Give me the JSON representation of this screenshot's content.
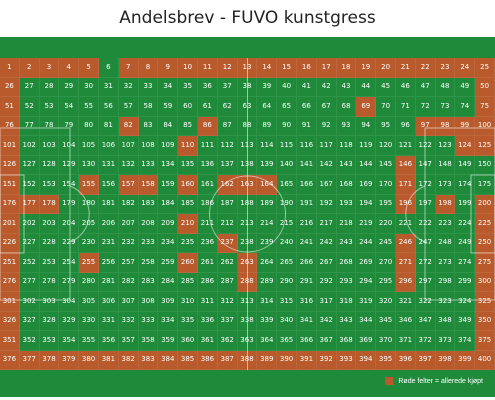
{
  "title": "Andelsbrev - FUVO kunstgress",
  "legend": {
    "label": "Røde felter = allerede kjøpt"
  },
  "colors": {
    "field": "#1e8a3a",
    "sold": "#b85a2c",
    "line": "#ffffff"
  },
  "grid": {
    "columns": 25,
    "rows": 16,
    "first": 1,
    "last": 400
  },
  "sold_cells": [
    1,
    2,
    3,
    4,
    5,
    7,
    8,
    9,
    10,
    11,
    12,
    13,
    14,
    15,
    16,
    17,
    18,
    19,
    20,
    21,
    22,
    23,
    24,
    25,
    26,
    50,
    51,
    69,
    75,
    76,
    82,
    86,
    97,
    98,
    99,
    100,
    101,
    110,
    124,
    125,
    126,
    146,
    151,
    155,
    157,
    158,
    160,
    162,
    163,
    164,
    171,
    176,
    177,
    178,
    196,
    198,
    200,
    201,
    210,
    225,
    226,
    237,
    246,
    250,
    251,
    255,
    260,
    263,
    271,
    275,
    276,
    288,
    296,
    300,
    301,
    325,
    326,
    350,
    351,
    375,
    376,
    377,
    378,
    379,
    380,
    381,
    382,
    383,
    384,
    385,
    386,
    387,
    388,
    389,
    390,
    391,
    392,
    393,
    394,
    395,
    396,
    397,
    398,
    399,
    400
  ]
}
